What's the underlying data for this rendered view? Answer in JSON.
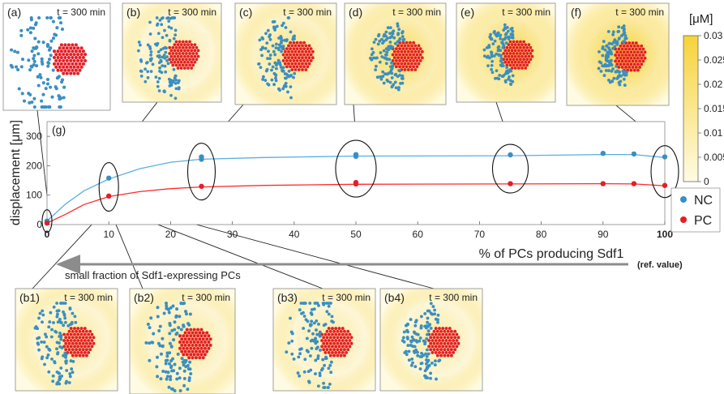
{
  "colors": {
    "nc": "#3a8fc2",
    "nc_line": "#5aaee0",
    "pc": "#e31f26",
    "pc_line": "#ff2a2a",
    "field_high": "#f6d33a",
    "field_low": "#fffbe3",
    "arrow": "#8c8c8c"
  },
  "panels": [
    {
      "label": "(a)",
      "time": "t = 300 min",
      "nc_spread": 1.0,
      "pc_field": 0.0
    },
    {
      "label": "(b)",
      "time": "t = 300 min",
      "nc_spread": 0.75,
      "pc_field": 0.3
    },
    {
      "label": "(c)",
      "time": "t = 300 min",
      "nc_spread": 0.55,
      "pc_field": 0.5
    },
    {
      "label": "(d)",
      "time": "t = 300 min",
      "nc_spread": 0.4,
      "pc_field": 0.75
    },
    {
      "label": "(e)",
      "time": "t = 300 min",
      "nc_spread": 0.35,
      "pc_field": 0.85
    },
    {
      "label": "(f)",
      "time": "t = 300 min",
      "nc_spread": 0.3,
      "pc_field": 1.0
    },
    {
      "label": "(b1)",
      "time": "t = 300 min",
      "nc_spread": 0.7,
      "pc_field": 0.35
    },
    {
      "label": "(b2)",
      "time": "t = 300 min",
      "nc_spread": 0.75,
      "pc_field": 0.35
    },
    {
      "label": "(b3)",
      "time": "t = 300 min",
      "nc_spread": 0.85,
      "pc_field": 0.3
    },
    {
      "label": "(b4)",
      "time": "t = 300 min",
      "nc_spread": 0.5,
      "pc_field": 0.3
    }
  ],
  "colorbar": {
    "unit": "[μM]",
    "ticks": [
      "0.03",
      "0.025",
      "0.02",
      "0.015",
      "0.01",
      "0.005",
      "0"
    ]
  },
  "annotation": "small fraction of Sdf1-expressing PCs",
  "ref_value": "(ref. value)",
  "chart_data": {
    "type": "line",
    "label": "(g)",
    "xlabel": "% of PCs producing Sdf1",
    "ylabel": "displacement [μm]",
    "xlim": [
      0,
      100
    ],
    "ylim": [
      0,
      350
    ],
    "x_ticks": [
      "0",
      "10",
      "20",
      "30",
      "40",
      "50",
      "60",
      "70",
      "80",
      "90",
      "100"
    ],
    "y_ticks": [
      "0",
      "100",
      "200",
      "300"
    ],
    "grid": false,
    "legend_position": "right",
    "legend": [
      "NC",
      "PC"
    ],
    "series": [
      {
        "name": "NC",
        "points": [
          [
            0,
            12
          ],
          [
            10,
            158
          ],
          [
            25,
            222
          ],
          [
            25,
            230
          ],
          [
            50,
            232
          ],
          [
            50,
            238
          ],
          [
            75,
            237
          ],
          [
            90,
            242
          ],
          [
            95,
            240
          ],
          [
            100,
            230
          ]
        ],
        "curve": [
          [
            0,
            12
          ],
          [
            3,
            70
          ],
          [
            6,
            115
          ],
          [
            10,
            155
          ],
          [
            15,
            190
          ],
          [
            20,
            212
          ],
          [
            25,
            222
          ],
          [
            35,
            228
          ],
          [
            50,
            233
          ],
          [
            75,
            234
          ],
          [
            90,
            238
          ],
          [
            95,
            238
          ],
          [
            100,
            228
          ]
        ]
      },
      {
        "name": "PC",
        "points": [
          [
            0,
            5
          ],
          [
            10,
            97
          ],
          [
            25,
            130
          ],
          [
            50,
            138
          ],
          [
            50,
            143
          ],
          [
            75,
            139
          ],
          [
            90,
            139
          ],
          [
            95,
            139
          ],
          [
            100,
            133
          ]
        ],
        "curve": [
          [
            0,
            5
          ],
          [
            3,
            35
          ],
          [
            6,
            68
          ],
          [
            10,
            95
          ],
          [
            15,
            112
          ],
          [
            20,
            122
          ],
          [
            25,
            128
          ],
          [
            35,
            133
          ],
          [
            50,
            137
          ],
          [
            75,
            138
          ],
          [
            90,
            139
          ],
          [
            95,
            138
          ],
          [
            100,
            132
          ]
        ]
      }
    ]
  }
}
